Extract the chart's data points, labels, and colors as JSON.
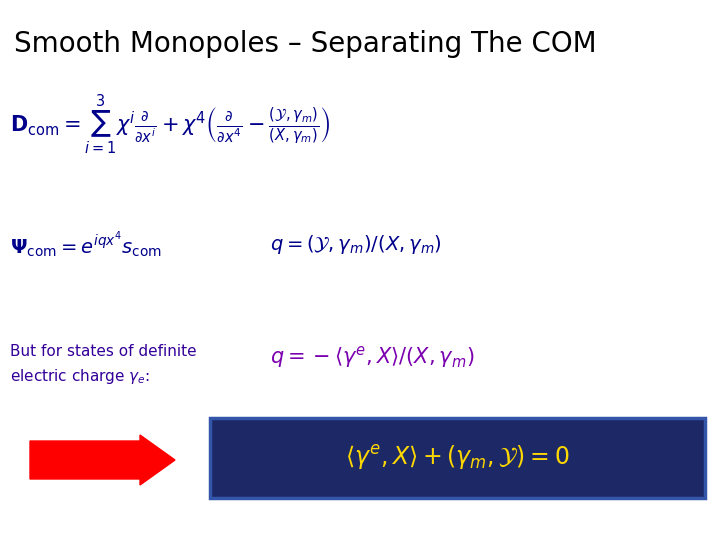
{
  "title": "Smooth Monopoles – Separating The COM",
  "title_fontsize": 20,
  "title_color": "#000000",
  "bg_color": "#ffffff",
  "blue_dark": "#00008B",
  "purple_color": "#7B00B0",
  "yellow": "#FFD700",
  "navy_box": "#1C2966",
  "navy_box_edge": "#3355AA",
  "red_arrow": "#FF0000",
  "eq1_fontsize": 15,
  "eq2_fontsize": 14,
  "eq3_fontsize": 15,
  "eq4_fontsize": 17,
  "text_fontsize": 11
}
